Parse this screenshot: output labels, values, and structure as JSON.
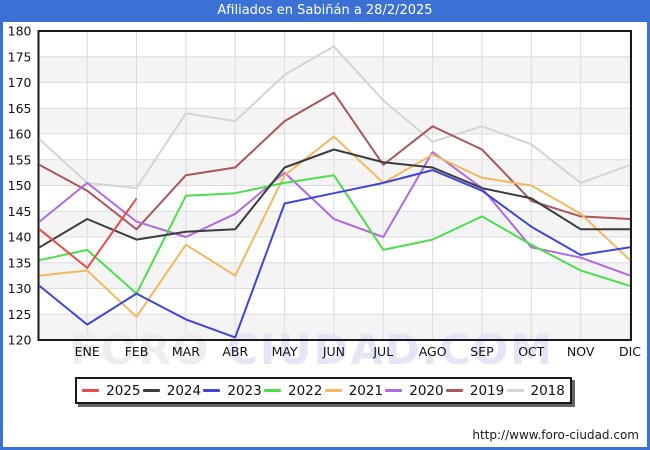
{
  "window": {
    "title": "Afiliados en Sabiñán a 28/2/2025",
    "url": "http://www.foro-ciudad.com",
    "watermark_left": "FORO",
    "watermark_right": "CIUDAD.COM"
  },
  "colors": {
    "title_bar": "#3b71d4",
    "frame": "#3b71d4",
    "plot_border": "#1a1a1a",
    "band": "#f4f4f4",
    "grid": "#dcdcdc",
    "axis_text": "#111111",
    "watermark_left": "#ededed",
    "watermark_right": "#e4e6f8"
  },
  "chart_data": {
    "type": "line",
    "title": "Afiliados en Sabiñán a 28/2/2025",
    "categories": [
      "ENE",
      "FEB",
      "MAR",
      "ABR",
      "MAY",
      "JUN",
      "JUL",
      "AGO",
      "SEP",
      "OCT",
      "NOV",
      "DIC"
    ],
    "ylabel": "",
    "xlabel": "",
    "ylim": [
      120,
      180
    ],
    "ytick_step": 5,
    "grid": true,
    "legend_position": "bottom",
    "note": "Each series starts at the plot left edge with the previous year's December value.",
    "series": [
      {
        "name": "2025",
        "color": "#e64c4c",
        "start": 141.5,
        "values": [
          134,
          147.5
        ]
      },
      {
        "name": "2024",
        "color": "#3c3c3c",
        "start": 138,
        "values": [
          143.5,
          139.5,
          141,
          141.5,
          153.5,
          157,
          154.5,
          153.5,
          149.5,
          147.5,
          141.5,
          141.5
        ]
      },
      {
        "name": "2023",
        "color": "#3d46d8",
        "start": 130.5,
        "values": [
          123,
          129,
          124,
          120.5,
          146.5,
          148.5,
          150.5,
          153,
          149,
          142,
          136.5,
          138
        ]
      },
      {
        "name": "2022",
        "color": "#4cdf4c",
        "start": 135.5,
        "values": [
          137.5,
          129,
          148,
          148.5,
          150.5,
          152,
          137.5,
          139.5,
          144,
          138.5,
          133.5,
          130.5
        ]
      },
      {
        "name": "2021",
        "color": "#f2b95f",
        "start": 132.5,
        "values": [
          133.5,
          124.5,
          138.5,
          132.5,
          152,
          159.5,
          150.5,
          156,
          151.5,
          150,
          144.5,
          135.5
        ]
      },
      {
        "name": "2020",
        "color": "#b16ae2",
        "start": 143,
        "values": [
          150.5,
          143,
          140,
          144.5,
          152.5,
          143.5,
          140,
          156.5,
          149.5,
          138,
          136,
          132.5
        ]
      },
      {
        "name": "2019",
        "color": "#ab5757",
        "start": 154,
        "values": [
          149,
          141.5,
          152,
          153.5,
          162.5,
          168,
          154,
          161.5,
          157,
          147,
          144,
          143.5
        ]
      },
      {
        "name": "2018",
        "color": "#d4d4d4",
        "start": 159,
        "values": [
          150.5,
          149.5,
          164,
          162.5,
          171.5,
          177,
          166.5,
          158.5,
          161.5,
          158,
          150.5,
          154
        ]
      }
    ]
  }
}
